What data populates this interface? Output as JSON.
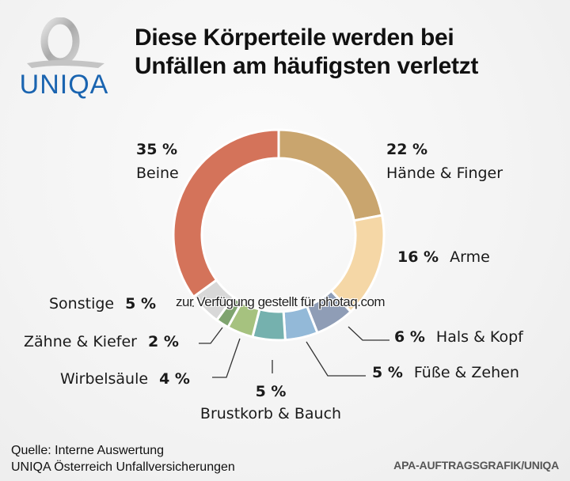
{
  "logo": {
    "wordmark": "UNIQA",
    "brand_color": "#1a64b0"
  },
  "title_lines": [
    "Diese Körperteile werden bei",
    "Unfällen am häufigsten verletzt"
  ],
  "watermark": "zur Verfügung gestellt für photaq.com",
  "source": {
    "line1": "Quelle: Interne Auswertung",
    "line2": "UNIQA Österreich Unfallversicherungen"
  },
  "credit": "APA-AUFTRAGSGRAFIK/UNIQA",
  "chart_data": {
    "type": "pie",
    "variant": "donut",
    "title": "Diese Körperteile werden bei Unfällen am häufigsten verletzt",
    "unit": "%",
    "start": "12 o'clock",
    "direction": "clockwise",
    "slices": [
      {
        "label": "Hände & Finger",
        "value": 22,
        "display": "22 %",
        "color": "#c9a56e"
      },
      {
        "label": "Arme",
        "value": 16,
        "display": "16 %",
        "color": "#f5d7a6"
      },
      {
        "label": "Hals & Kopf",
        "value": 6,
        "display": "6 %",
        "color": "#8f9db6"
      },
      {
        "label": "Füße & Zehen",
        "value": 5,
        "display": "5 %",
        "color": "#93b9d8"
      },
      {
        "label": "Brustkorb & Bauch",
        "value": 5,
        "display": "5 %",
        "color": "#75b1ae"
      },
      {
        "label": "Wirbelsäule",
        "value": 4,
        "display": "4 %",
        "color": "#a6c27f"
      },
      {
        "label": "Zähne & Kiefer",
        "value": 2,
        "display": "2 %",
        "color": "#7fa46f"
      },
      {
        "label": "Sonstige",
        "value": 5,
        "display": "5 %",
        "color": "#d8d8d8"
      },
      {
        "label": "Beine",
        "value": 35,
        "display": "35 %",
        "color": "#d4735a"
      }
    ]
  }
}
